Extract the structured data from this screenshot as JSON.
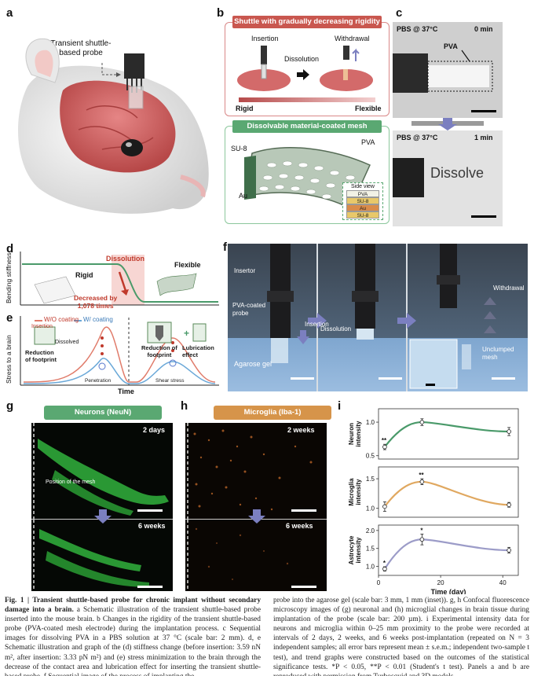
{
  "panels": {
    "a": {
      "letter": "a",
      "probe_label_line1": "Transient shuttle-",
      "probe_label_line2": "based probe"
    },
    "b": {
      "letter": "b",
      "top_banner": "Shuttle with gradually decreasing rigidity",
      "insertion": "Insertion",
      "withdrawal": "Withdrawal",
      "dissolution": "Dissolution",
      "rigid": "Rigid",
      "flexible": "Flexible",
      "bottom_banner": "Dissolvable material-coated mesh",
      "su8": "SU-8",
      "pva": "PVA",
      "au": "Au",
      "side_view_title": "Side view",
      "side_view_layers": [
        "PVA",
        "SU-8",
        "Au",
        "SU-8"
      ]
    },
    "c": {
      "letter": "c",
      "top_condition": "PBS @ 37°C",
      "top_time": "0 min",
      "pva_label": "PVA",
      "bottom_condition": "PBS @ 37°C",
      "bottom_time": "1 min",
      "dissolve_text": "Dissolve"
    },
    "d": {
      "letter": "d",
      "ylabel": "Bending stiffness",
      "rigid": "Rigid",
      "dissolution": "Dissolution",
      "flexible": "Flexible",
      "decrease_line1": "Decreased by",
      "decrease_line2": "1,078 times"
    },
    "e": {
      "letter": "e",
      "ylabel": "Stress to a brain",
      "xlabel": "Time",
      "legend_without": "W/O coating",
      "legend_with": "W/ coating",
      "insertion": "Insertion",
      "dissolved": "Dissolved",
      "reduction_left_line1": "Reduction",
      "reduction_left_line2": "of footprint",
      "reduction_right_line1": "Reduction of",
      "reduction_right_line2": "footprint",
      "lubrication_line1": "Lubrication",
      "lubrication_line2": "effect",
      "penetration": "Penetration",
      "shear_stress": "Shear stress"
    },
    "f": {
      "letter": "f",
      "insertor": "Insertor",
      "pva_probe_line1": "PVA-coated",
      "pva_probe_line2": "probe",
      "insertion": "Insertion",
      "dissolution": "Dissolution",
      "withdrawal": "Withdrawal",
      "unclumped_line1": "Unclumped",
      "unclumped_line2": "mesh",
      "agarose": "Agarose gel"
    },
    "g": {
      "letter": "g",
      "banner": "Neurons (NeuN)",
      "time_top": "2 days",
      "time_bottom": "6 weeks",
      "mesh_position": "Position of the mesh"
    },
    "h": {
      "letter": "h",
      "banner": "Microglia (Iba-1)",
      "time_top": "2 weeks",
      "time_bottom": "6 weeks"
    },
    "i": {
      "letter": "i"
    }
  },
  "colors": {
    "red_banner": "#c9574f",
    "green_banner": "#5aa872",
    "orange_banner": "#d6944a",
    "neuron_curve": "#4a9a6a",
    "microglia_curve": "#e0a860",
    "astrocyte_curve": "#9c9cc8",
    "blue_arrow": "#7b7fc0",
    "red_accent": "#c0392b"
  },
  "chart_data": {
    "type": "line",
    "xlabel": "Time (day)",
    "xticks": [
      0,
      20,
      40
    ],
    "xlim": [
      0,
      45
    ],
    "series": [
      {
        "name": "",
        "ylabel": "Neuron intensity",
        "color": "#4a9a6a",
        "yticks": [
          0.5,
          1.0
        ],
        "ylim": [
          0.45,
          1.2
        ],
        "x": [
          2,
          14,
          42
        ],
        "y": [
          0.63,
          1.0,
          0.86
        ],
        "err": [
          0.04,
          0.05,
          0.06
        ],
        "sig": [
          "**",
          "",
          ""
        ]
      },
      {
        "name": "",
        "ylabel": "Microglia intensity",
        "color": "#e0a860",
        "yticks": [
          1.0,
          1.5
        ],
        "ylim": [
          0.85,
          1.7
        ],
        "x": [
          2,
          14,
          42
        ],
        "y": [
          1.03,
          1.45,
          1.06
        ],
        "err": [
          0.08,
          0.05,
          0.04
        ],
        "sig": [
          "",
          "**",
          ""
        ]
      },
      {
        "name": "",
        "ylabel": "Astrocyte intensity",
        "color": "#9c9cc8",
        "yticks": [
          1.0,
          1.5,
          2.0
        ],
        "ylim": [
          0.75,
          2.15
        ],
        "x": [
          2,
          14,
          42
        ],
        "y": [
          0.93,
          1.75,
          1.45
        ],
        "err": [
          0.06,
          0.15,
          0.08
        ],
        "sig": [
          "*",
          "*",
          ""
        ]
      }
    ]
  },
  "caption": {
    "fig_label": "Fig. 1 |",
    "fig_title": " Transient shuttle-based probe for chronic implant without secondary damage into a brain.",
    "left_rest": " a Schematic illustration of the transient shuttle-based probe inserted into the mouse brain. b Changes in the rigidity of the transient shuttle-based probe (PVA-coated mesh electrode) during the implantation process. c Sequential images for dissolving PVA in a PBS solution at 37 °C (scale bar: 2 mm). d, e Schematic illustration and graph of the (d) stiffness change (before insertion: 3.59 nN m², after insertion: 3.33 pN m²) and (e) stress minimization to the brain through the decrease of the contact area and lubrication effect for inserting the transient shuttle-based probe. f Sequential image of the process of implanting the",
    "right": "probe into the agarose gel (scale bar: 3 mm, 1 mm (inset)). g, h Confocal fluorescence microscopy images of (g) neuronal and (h) microglial changes in brain tissue during implantation of the probe (scale bar: 200 µm). i Experimental intensity data for neurons and microglia within 0–25 mm proximity to the probe were recorded at intervals of 2 days, 2 weeks, and 6 weeks post-implantation (repeated on N = 3 independent samples; all error bars represent mean ± s.e.m.; independent two-sample t test), and trend graphs were constructed based on the outcomes of the statistical significance tests. *P < 0.05, **P < 0.01 (Student's t test). Panels a and b are reproduced with permission from Turbosquid and 3D models."
  }
}
